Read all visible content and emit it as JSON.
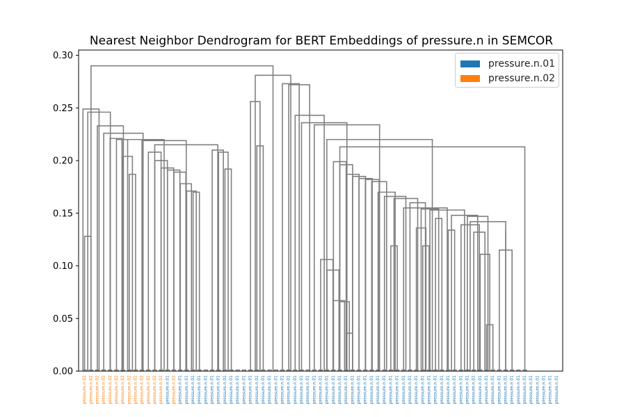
{
  "chart_data": {
    "type": "dendrogram",
    "title": "Nearest Neighbor Dendrogram for BERT Embeddings of pressure.n in SEMCOR",
    "xlabel": "",
    "ylabel": "",
    "ylim": [
      0,
      0.305
    ],
    "yticks": [
      "0.00",
      "0.05",
      "0.10",
      "0.15",
      "0.20",
      "0.25",
      "0.30"
    ],
    "ytick_values": [
      0,
      0.05,
      0.1,
      0.15,
      0.2,
      0.25,
      0.3
    ],
    "line_color": "#808080",
    "legend_position": "top-right",
    "legend": [
      {
        "name": "pressure.n.01",
        "color": "#1f77b4"
      },
      {
        "name": "pressure.n.02",
        "color": "#ff7f0e"
      }
    ],
    "leaf_labels": [
      "pressure.n.02",
      "pressure.n.02",
      "pressure.n.02",
      "pressure.n.02",
      "pressure.n.02",
      "pressure.n.02",
      "pressure.n.02",
      "pressure.n.02",
      "pressure.n.02",
      "pressure.n.02",
      "pressure.n.02",
      "pressure.n.02",
      "pressure.n.02",
      "pressure.n.02",
      "pressure.n.02",
      "pressure.n.02",
      "pressure.n.02",
      "pressure.n.02",
      "pressure.n.02",
      "pressure.n.02",
      "pressure.n.02",
      "pressure.n.02",
      "pressure.n.02",
      "pressure.n.02",
      "pressure.n.02",
      "pressure.n.01",
      "pressure.n.01",
      "pressure.n.01",
      "pressure.n.02",
      "pressure.n.01",
      "pressure.n.01",
      "pressure.n.01",
      "pressure.n.01",
      "pressure.n.01",
      "pressure.n.01",
      "pressure.n.01",
      "pressure.n.01",
      "pressure.n.01",
      "pressure.n.01",
      "pressure.n.01",
      "pressure.n.01",
      "pressure.n.01",
      "pressure.n.01",
      "pressure.n.01",
      "pressure.n.01",
      "pressure.n.01",
      "pressure.n.01",
      "pressure.n.01",
      "pressure.n.01",
      "pressure.n.01",
      "pressure.n.01",
      "pressure.n.01",
      "pressure.n.01",
      "pressure.n.01",
      "pressure.n.01",
      "pressure.n.01",
      "pressure.n.01",
      "pressure.n.01",
      "pressure.n.01",
      "pressure.n.01",
      "pressure.n.01",
      "pressure.n.01",
      "pressure.n.01",
      "pressure.n.01",
      "pressure.n.01",
      "pressure.n.01",
      "pressure.n.01",
      "pressure.n.01",
      "pressure.n.01",
      "pressure.n.01",
      "pressure.n.01",
      "pressure.n.01",
      "pressure.n.01",
      "pressure.n.01",
      "pressure.n.01",
      "pressure.n.01",
      "pressure.n.01",
      "pressure.n.01",
      "pressure.n.01",
      "pressure.n.01",
      "pressure.n.01",
      "pressure.n.01",
      "pressure.n.01",
      "pressure.n.01",
      "pressure.n.01",
      "pressure.n.01",
      "pressure.n.01",
      "pressure.n.01",
      "pressure.n.01",
      "pressure.n.01",
      "pressure.n.01",
      "pressure.n.01",
      "pressure.n.01",
      "pressure.n.01",
      "pressure.n.01",
      "pressure.n.01",
      "pressure.n.01",
      "pressure.n.01",
      "pressure.n.01",
      "pressure.n.01",
      "pressure.n.01",
      "pressure.n.01",
      "pressure.n.01",
      "pressure.n.01",
      "pressure.n.01",
      "pressure.n.01",
      "pressure.n.01",
      "pressure.n.01",
      "pressure.n.01",
      "pressure.n.01",
      "pressure.n.01",
      "pressure.n.01",
      "pressure.n.01",
      "pressure.n.01",
      "pressure.n.01",
      "pressure.n.01",
      "pressure.n.01",
      "pressure.n.01",
      "pressure.n.01",
      "pressure.n.01",
      "pressure.n.01",
      "pressure.n.01",
      "pressure.n.01",
      "pressure.n.01",
      "pressure.n.01",
      "pressure.n.01",
      "pressure.n.01",
      "pressure.n.01",
      "pressure.n.01",
      "pressure.n.01",
      "pressure.n.01",
      "pressure.n.01",
      "pressure.n.01",
      "pressure.n.01",
      "pressure.n.01",
      "pressure.n.01",
      "pressure.n.01",
      "pressure.n.01",
      "pressure.n.01",
      "pressure.n.01",
      "pressure.n.01",
      "pressure.n.01",
      "pressure.n.01",
      "pressure.n.01",
      "pressure.n.01",
      "pressure.n.01",
      "pressure.n.01",
      "pressure.n.01",
      "pressure.n.01",
      "pressure.n.01"
    ],
    "links": [
      {
        "x": [
          0,
          1
        ],
        "h": 0.001
      },
      {
        "x": [
          2,
          3
        ],
        "h": 0.001
      },
      {
        "x": [
          4,
          5
        ],
        "h": 0.001
      },
      {
        "x": [
          6,
          7
        ],
        "h": 0.001
      },
      {
        "x": [
          8,
          9
        ],
        "h": 0.001
      },
      {
        "x": [
          10,
          11
        ],
        "h": 0.001
      },
      {
        "x": [
          12,
          13
        ],
        "h": 0.001
      },
      {
        "x": [
          14,
          15
        ],
        "h": 0.001
      },
      {
        "x": [
          16,
          17
        ],
        "h": 0.001
      },
      {
        "x": [
          18,
          19
        ],
        "h": 0.001
      },
      {
        "x": [
          20,
          21
        ],
        "h": 0.001
      },
      {
        "x": [
          22,
          23
        ],
        "h": 0.001
      },
      {
        "x": [
          24,
          25
        ],
        "h": 0.001
      },
      {
        "x": [
          26,
          27
        ],
        "h": 0.001
      },
      {
        "x": [
          28,
          29
        ],
        "h": 0.001
      },
      {
        "x": [
          30,
          31
        ],
        "h": 0.001
      },
      {
        "x": [
          32,
          33
        ],
        "h": 0.001
      },
      {
        "x": [
          34,
          35
        ],
        "h": 0.001
      },
      {
        "x": [
          36,
          37
        ],
        "h": 0.001
      },
      {
        "x": [
          38,
          39
        ],
        "h": 0.001
      },
      {
        "x": [
          40,
          41
        ],
        "h": 0.001
      },
      {
        "x": [
          42,
          43
        ],
        "h": 0.001
      },
      {
        "x": [
          44,
          45
        ],
        "h": 0.001
      },
      {
        "x": [
          46,
          47
        ],
        "h": 0.001
      },
      {
        "x": [
          48,
          49
        ],
        "h": 0.001
      },
      {
        "x": [
          50,
          51
        ],
        "h": 0.001
      },
      {
        "x": [
          52,
          53
        ],
        "h": 0.001
      },
      {
        "x": [
          54,
          55
        ],
        "h": 0.001
      },
      {
        "x": [
          56,
          57
        ],
        "h": 0.001
      },
      {
        "x": [
          58,
          59
        ],
        "h": 0.001
      },
      {
        "x": [
          60,
          61
        ],
        "h": 0.001
      },
      {
        "x": [
          62,
          63
        ],
        "h": 0.001
      },
      {
        "x": [
          64,
          65
        ],
        "h": 0.001
      },
      {
        "x": [
          66,
          67
        ],
        "h": 0.001
      },
      {
        "x": [
          68,
          69
        ],
        "h": 0.001
      },
      {
        "x": [
          70,
          71
        ],
        "h": 0.001
      },
      {
        "x": [
          72,
          73
        ],
        "h": 0.001
      },
      {
        "x": [
          74,
          75
        ],
        "h": 0.001
      },
      {
        "x": [
          76,
          77
        ],
        "h": 0.001
      },
      {
        "x": [
          78,
          79
        ],
        "h": 0.001
      },
      {
        "x": [
          80,
          81
        ],
        "h": 0.001
      },
      {
        "x": [
          82,
          83
        ],
        "h": 0.001
      },
      {
        "x": [
          84,
          85
        ],
        "h": 0.001
      },
      {
        "x": [
          86,
          87
        ],
        "h": 0.001
      },
      {
        "x": [
          88,
          89
        ],
        "h": 0.001
      },
      {
        "x": [
          90,
          91
        ],
        "h": 0.001
      },
      {
        "x": [
          92,
          93
        ],
        "h": 0.001
      },
      {
        "x": [
          94,
          95
        ],
        "h": 0.001
      },
      {
        "x": [
          96,
          97
        ],
        "h": 0.001
      },
      {
        "x": [
          98,
          99
        ],
        "h": 0.001
      },
      {
        "x": [
          100,
          101
        ],
        "h": 0.001
      },
      {
        "x": [
          102,
          103
        ],
        "h": 0.001
      },
      {
        "x": [
          104,
          105
        ],
        "h": 0.001
      },
      {
        "x": [
          106,
          107
        ],
        "h": 0.001
      },
      {
        "x": [
          108,
          109
        ],
        "h": 0.001
      },
      {
        "x": [
          110,
          111
        ],
        "h": 0.001
      },
      {
        "x": [
          112,
          113
        ],
        "h": 0.001
      },
      {
        "x": [
          114,
          115
        ],
        "h": 0.001
      },
      {
        "x": [
          116,
          117
        ],
        "h": 0.001
      },
      {
        "x": [
          118,
          119
        ],
        "h": 0.001
      },
      {
        "x": [
          120,
          121
        ],
        "h": 0.001
      },
      {
        "x": [
          122,
          123
        ],
        "h": 0.001
      },
      {
        "x": [
          124,
          125
        ],
        "h": 0.001
      },
      {
        "x": [
          126,
          127
        ],
        "h": 0.001
      },
      {
        "x": [
          128,
          129
        ],
        "h": 0.001
      },
      {
        "x": [
          130,
          131
        ],
        "h": 0.001
      },
      {
        "x": [
          132,
          133
        ],
        "h": 0.001
      },
      {
        "x": [
          134,
          135
        ],
        "h": 0.001
      },
      {
        "x": [
          136,
          137
        ],
        "h": 0.001
      },
      {
        "x": [
          138,
          139
        ],
        "h": 0.001
      },
      {
        "x": [
          0.5,
          2.5
        ],
        "h": 0.128
      },
      {
        "x": [
          34.5,
          36.5
        ],
        "h": 0.17
      },
      {
        "x": [
          32.5,
          35.5
        ],
        "h": 0.171
      },
      {
        "x": [
          30.5,
          34
        ],
        "h": 0.178
      },
      {
        "x": [
          28.5,
          32.25
        ],
        "h": 0.189
      },
      {
        "x": [
          26.5,
          30.375
        ],
        "h": 0.191
      },
      {
        "x": [
          24.5,
          28.4375
        ],
        "h": 0.193
      },
      {
        "x": [
          22.5,
          26.46875
        ],
        "h": 0.2
      },
      {
        "x": [
          20.5,
          24.484375
        ],
        "h": 0.208
      },
      {
        "x": [
          44.5,
          46.5
        ],
        "h": 0.192
      },
      {
        "x": [
          42.5,
          45.5
        ],
        "h": 0.208
      },
      {
        "x": [
          40.5,
          44
        ],
        "h": 0.21
      },
      {
        "x": [
          22.4921875,
          42.25
        ],
        "h": 0.215
      },
      {
        "x": [
          18.5,
          32.37109375
        ],
        "h": 0.219
      },
      {
        "x": [
          14.5,
          16.5
        ],
        "h": 0.187
      },
      {
        "x": [
          12.5,
          15.5
        ],
        "h": 0.204
      },
      {
        "x": [
          10.5,
          14
        ],
        "h": 0.22
      },
      {
        "x": [
          8.5,
          12.25
        ],
        "h": 0.221
      },
      {
        "x": [
          12.25,
          25.435546875
        ],
        "h": 0.22
      },
      {
        "x": [
          6.5,
          18.8427734375
        ],
        "h": 0.226
      },
      {
        "x": [
          4.5,
          12.67138671875
        ],
        "h": 0.233
      },
      {
        "x": [
          1.5,
          8.585693359375
        ],
        "h": 0.246
      },
      {
        "x": [
          0,
          5.0428466796875
        ],
        "h": 0.249
      },
      {
        "x": [
          54.5,
          56.5
        ],
        "h": 0.214
      },
      {
        "x": [
          52.5,
          55.5
        ],
        "h": 0.256
      },
      {
        "x": [
          82.5,
          84.5
        ],
        "h": 0.036
      },
      {
        "x": [
          80.5,
          83.5
        ],
        "h": 0.066
      },
      {
        "x": [
          78.5,
          82
        ],
        "h": 0.067
      },
      {
        "x": [
          76.5,
          80.25
        ],
        "h": 0.096
      },
      {
        "x": [
          74.5,
          78.375
        ],
        "h": 0.106
      },
      {
        "x": [
          106.5,
          108.5
        ],
        "h": 0.119
      },
      {
        "x": [
          104.5,
          107.5
        ],
        "h": 0.136
      },
      {
        "x": [
          110.5,
          112.5
        ],
        "h": 0.145
      },
      {
        "x": [
          106,
          111.5
        ],
        "h": 0.154
      },
      {
        "x": [
          96.5,
          98.5
        ],
        "h": 0.119
      },
      {
        "x": [
          126.5,
          128.5
        ],
        "h": 0.044
      },
      {
        "x": [
          124.5,
          127.5
        ],
        "h": 0.111
      },
      {
        "x": [
          122.5,
          126
        ],
        "h": 0.132
      },
      {
        "x": [
          118.5,
          124.25
        ],
        "h": 0.139
      },
      {
        "x": [
          130.5,
          134.5
        ],
        "h": 0.115
      },
      {
        "x": [
          132.5,
          132.5
        ],
        "h": 0.133
      },
      {
        "x": [
          121.375,
          132.5
        ],
        "h": 0.142
      },
      {
        "x": [
          114.5,
          116.5
        ],
        "h": 0.134
      },
      {
        "x": [
          120.5,
          126.9375
        ],
        "h": 0.147
      },
      {
        "x": [
          115.5,
          123.71875
        ],
        "h": 0.148
      },
      {
        "x": [
          108.75,
          119.609375
        ],
        "h": 0.153
      },
      {
        "x": [
          100.5,
          114.1796875
        ],
        "h": 0.155
      },
      {
        "x": [
          102.5,
          107.33984375
        ],
        "h": 0.16
      },
      {
        "x": [
          97.5,
          104.919921875
        ],
        "h": 0.164
      },
      {
        "x": [
          94.5,
          101.2099609375
        ],
        "h": 0.166
      },
      {
        "x": [
          92.5,
          97.85498046875
        ],
        "h": 0.17
      },
      {
        "x": [
          90.5,
          95.177490234375
        ],
        "h": 0.18
      },
      {
        "x": [
          88.5,
          92.8387451171875
        ],
        "h": 0.182
      },
      {
        "x": [
          86.5,
          90.66937255859375
        ],
        "h": 0.183
      },
      {
        "x": [
          84.5,
          88.58468627929688
        ],
        "h": 0.185
      },
      {
        "x": [
          82.5,
          86.54234313964844
        ],
        "h": 0.187
      },
      {
        "x": [
          80.5,
          84.52117156982422
        ],
        "h": 0.196
      },
      {
        "x": [
          78.5,
          82.5105857849121
        ],
        "h": 0.199
      },
      {
        "x": [
          80.50529289245605,
          138.5
        ],
        "h": 0.213
      },
      {
        "x": [
          76.4375,
          109.50264644622803
        ],
        "h": 0.22
      },
      {
        "x": [
          72.5,
          92.97007322311401
        ],
        "h": 0.234
      },
      {
        "x": [
          68.5,
          82.735036611557
        ],
        "h": 0.236
      },
      {
        "x": [
          66.5,
          75.6175183057785
        ],
        "h": 0.243
      },
      {
        "x": [
          64.5,
          71.05875915288925
        ],
        "h": 0.272
      },
      {
        "x": [
          62.5,
          67.77937957644463
        ],
        "h": 0.273
      },
      {
        "x": [
          54,
          65.13968978822231
        ],
        "h": 0.281
      },
      {
        "x": [
          2.52142333984375,
          59.56984489411116
        ],
        "h": 0.29
      }
    ]
  }
}
